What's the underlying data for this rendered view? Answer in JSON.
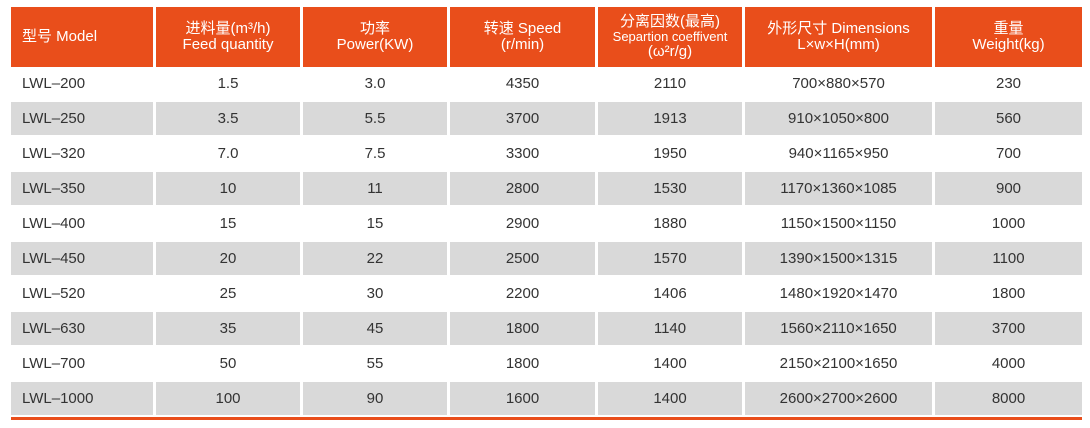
{
  "headers": [
    {
      "line1": "型号 Model",
      "line2": "",
      "line3": ""
    },
    {
      "line1": "进料量(m³/h)",
      "line2": "Feed quantity",
      "line3": ""
    },
    {
      "line1": "功率",
      "line2": "Power(KW)",
      "line3": ""
    },
    {
      "line1": "转速 Speed",
      "line2": "(r/min)",
      "line3": ""
    },
    {
      "line1": "分离因数(最高)",
      "line2": "Separtion coeffivent",
      "line3": "(ω²r/g)"
    },
    {
      "line1": "外形尺寸 Dimensions",
      "line2": "L×w×H(mm)",
      "line3": ""
    },
    {
      "line1": "重量",
      "line2": "Weight(kg)",
      "line3": ""
    }
  ],
  "rows": [
    [
      "LWL–200",
      "1.5",
      "3.0",
      "4350",
      "2110",
      "700×880×570",
      "230"
    ],
    [
      "LWL–250",
      "3.5",
      "5.5",
      "3700",
      "1913",
      "910×1050×800",
      "560"
    ],
    [
      "LWL–320",
      "7.0",
      "7.5",
      "3300",
      "1950",
      "940×1165×950",
      "700"
    ],
    [
      "LWL–350",
      "10",
      "11",
      "2800",
      "1530",
      "1170×1360×1085",
      "900"
    ],
    [
      "LWL–400",
      "15",
      "15",
      "2900",
      "1880",
      "1150×1500×1150",
      "1000"
    ],
    [
      "LWL–450",
      "20",
      "22",
      "2500",
      "1570",
      "1390×1500×1315",
      "1100"
    ],
    [
      "LWL–520",
      "25",
      "30",
      "2200",
      "1406",
      "1480×1920×1470",
      "1800"
    ],
    [
      "LWL–630",
      "35",
      "45",
      "1800",
      "1140",
      "1560×2110×1650",
      "3700"
    ],
    [
      "LWL–700",
      "50",
      "55",
      "1800",
      "1400",
      "2150×2100×1650",
      "4000"
    ],
    [
      "LWL–1000",
      "100",
      "90",
      "1600",
      "1400",
      "2600×2700×2600",
      "8000"
    ]
  ],
  "colors": {
    "header_bg": "#e94e1b",
    "stripe": "#d9d9d9",
    "text": "#333333"
  }
}
